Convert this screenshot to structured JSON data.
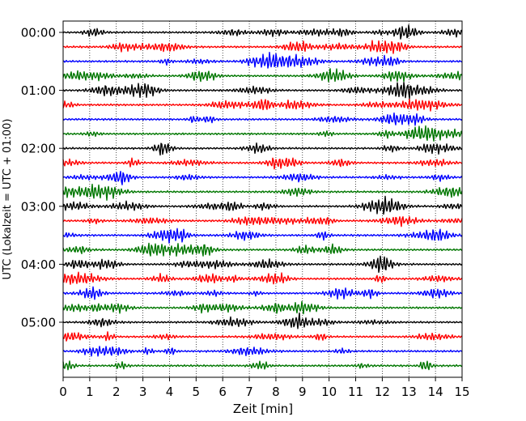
{
  "chart_data": {
    "type": "line",
    "title": "",
    "xlabel": "Zeit  [min]",
    "ylabel": "UTC (Lokalzeit = UTC + 01:00)",
    "xlim": [
      0,
      15
    ],
    "x_ticks": [
      0,
      1,
      2,
      3,
      4,
      5,
      6,
      7,
      8,
      9,
      10,
      11,
      12,
      13,
      14,
      15
    ],
    "y_ticks": [
      "00:00",
      "01:00",
      "02:00",
      "03:00",
      "04:00",
      "05:00"
    ],
    "trace_interval_minutes": 15,
    "trace_colors": [
      "#000000",
      "#ff0000",
      "#0000ff",
      "#007700"
    ],
    "grid": {
      "x": "dotted",
      "y": "none"
    },
    "series": [
      {
        "start": "00:00"
      },
      {
        "start": "00:15"
      },
      {
        "start": "00:30"
      },
      {
        "start": "00:45"
      },
      {
        "start": "01:00"
      },
      {
        "start": "01:15"
      },
      {
        "start": "01:30"
      },
      {
        "start": "01:45"
      },
      {
        "start": "02:00"
      },
      {
        "start": "02:15"
      },
      {
        "start": "02:30"
      },
      {
        "start": "02:45"
      },
      {
        "start": "03:00"
      },
      {
        "start": "03:15"
      },
      {
        "start": "03:30"
      },
      {
        "start": "03:45"
      },
      {
        "start": "04:00"
      },
      {
        "start": "04:15"
      },
      {
        "start": "04:30"
      },
      {
        "start": "04:45"
      },
      {
        "start": "05:00"
      },
      {
        "start": "05:15"
      },
      {
        "start": "05:30"
      },
      {
        "start": "05:45"
      }
    ]
  }
}
